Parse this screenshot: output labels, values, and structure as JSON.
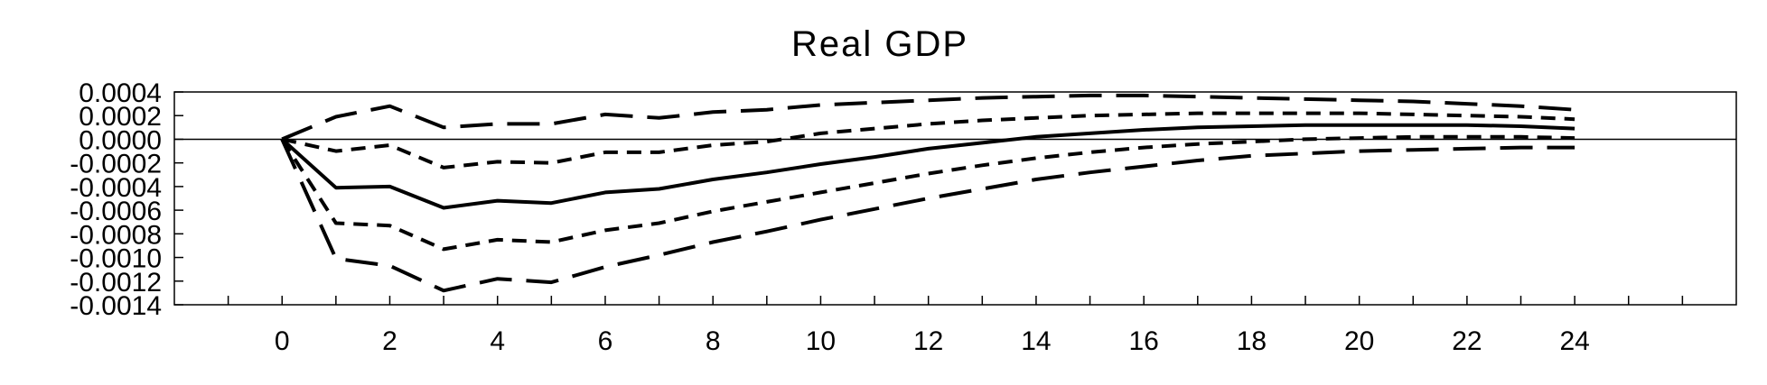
{
  "chart_data": {
    "type": "line",
    "title": "Real GDP",
    "xlabel": "",
    "ylabel": "",
    "xlim": [
      -2,
      27
    ],
    "ylim": [
      -0.0014,
      0.0004
    ],
    "x": [
      0,
      1,
      2,
      3,
      4,
      5,
      6,
      7,
      8,
      9,
      10,
      11,
      12,
      13,
      14,
      15,
      16,
      17,
      18,
      19,
      20,
      21,
      22,
      23,
      24
    ],
    "x_ticks": [
      0,
      2,
      4,
      6,
      8,
      10,
      12,
      14,
      16,
      18,
      20,
      22,
      24
    ],
    "x_tick_labels": [
      "0",
      "2",
      "4",
      "6",
      "8",
      "10",
      "12",
      "14",
      "16",
      "18",
      "20",
      "22",
      "24"
    ],
    "y_ticks": [
      0.0004,
      0.0002,
      0.0,
      -0.0002,
      -0.0004,
      -0.0006,
      -0.0008,
      -0.001,
      -0.0012,
      -0.0014
    ],
    "y_tick_labels": [
      "0.0004",
      "0.0002",
      "0.0000",
      "-0.0002",
      "-0.0004",
      "-0.0006",
      "-0.0008",
      "-0.0010",
      "-0.0012",
      "-0.0014"
    ],
    "zero_line": true,
    "grid": false,
    "series": [
      {
        "style": "solid",
        "values": [
          0,
          -0.00041,
          -0.0004,
          -0.00058,
          -0.00052,
          -0.00054,
          -0.00045,
          -0.00042,
          -0.00034,
          -0.00028,
          -0.00021,
          -0.00015,
          -8e-05,
          -3e-05,
          2e-05,
          5e-05,
          8e-05,
          0.0001,
          0.00011,
          0.00012,
          0.00012,
          0.00012,
          0.00012,
          0.00011,
          9e-05
        ]
      },
      {
        "style": "short-dash",
        "values": [
          0,
          -0.0001,
          -5e-05,
          -0.00024,
          -0.00019,
          -0.0002,
          -0.00011,
          -0.00011,
          -5e-05,
          -2e-05,
          5e-05,
          9e-05,
          0.00013,
          0.00016,
          0.00018,
          0.0002,
          0.00021,
          0.00022,
          0.00022,
          0.00022,
          0.00022,
          0.00021,
          0.0002,
          0.00019,
          0.00017
        ]
      },
      {
        "style": "short-dash",
        "values": [
          0,
          -0.00071,
          -0.00073,
          -0.00093,
          -0.00085,
          -0.00087,
          -0.00077,
          -0.00071,
          -0.00061,
          -0.00053,
          -0.00045,
          -0.00037,
          -0.00029,
          -0.00022,
          -0.00016,
          -0.00011,
          -7e-05,
          -4e-05,
          -2e-05,
          0.0,
          1e-05,
          2e-05,
          2e-05,
          2e-05,
          1e-05
        ]
      },
      {
        "style": "long-dash",
        "values": [
          0,
          0.00019,
          0.00028,
          0.0001,
          0.00013,
          0.00013,
          0.00021,
          0.00018,
          0.00023,
          0.00025,
          0.00029,
          0.00031,
          0.00033,
          0.00035,
          0.00036,
          0.00037,
          0.00037,
          0.00036,
          0.00035,
          0.00034,
          0.00033,
          0.00032,
          0.0003,
          0.00028,
          0.00025
        ]
      },
      {
        "style": "long-dash",
        "values": [
          0,
          -0.00101,
          -0.00107,
          -0.00128,
          -0.00118,
          -0.00121,
          -0.00108,
          -0.00098,
          -0.00087,
          -0.00078,
          -0.00068,
          -0.00059,
          -0.0005,
          -0.00042,
          -0.00034,
          -0.00028,
          -0.00023,
          -0.00018,
          -0.00014,
          -0.00012,
          -0.0001,
          -9e-05,
          -8e-05,
          -7e-05,
          -7e-05
        ]
      }
    ]
  }
}
